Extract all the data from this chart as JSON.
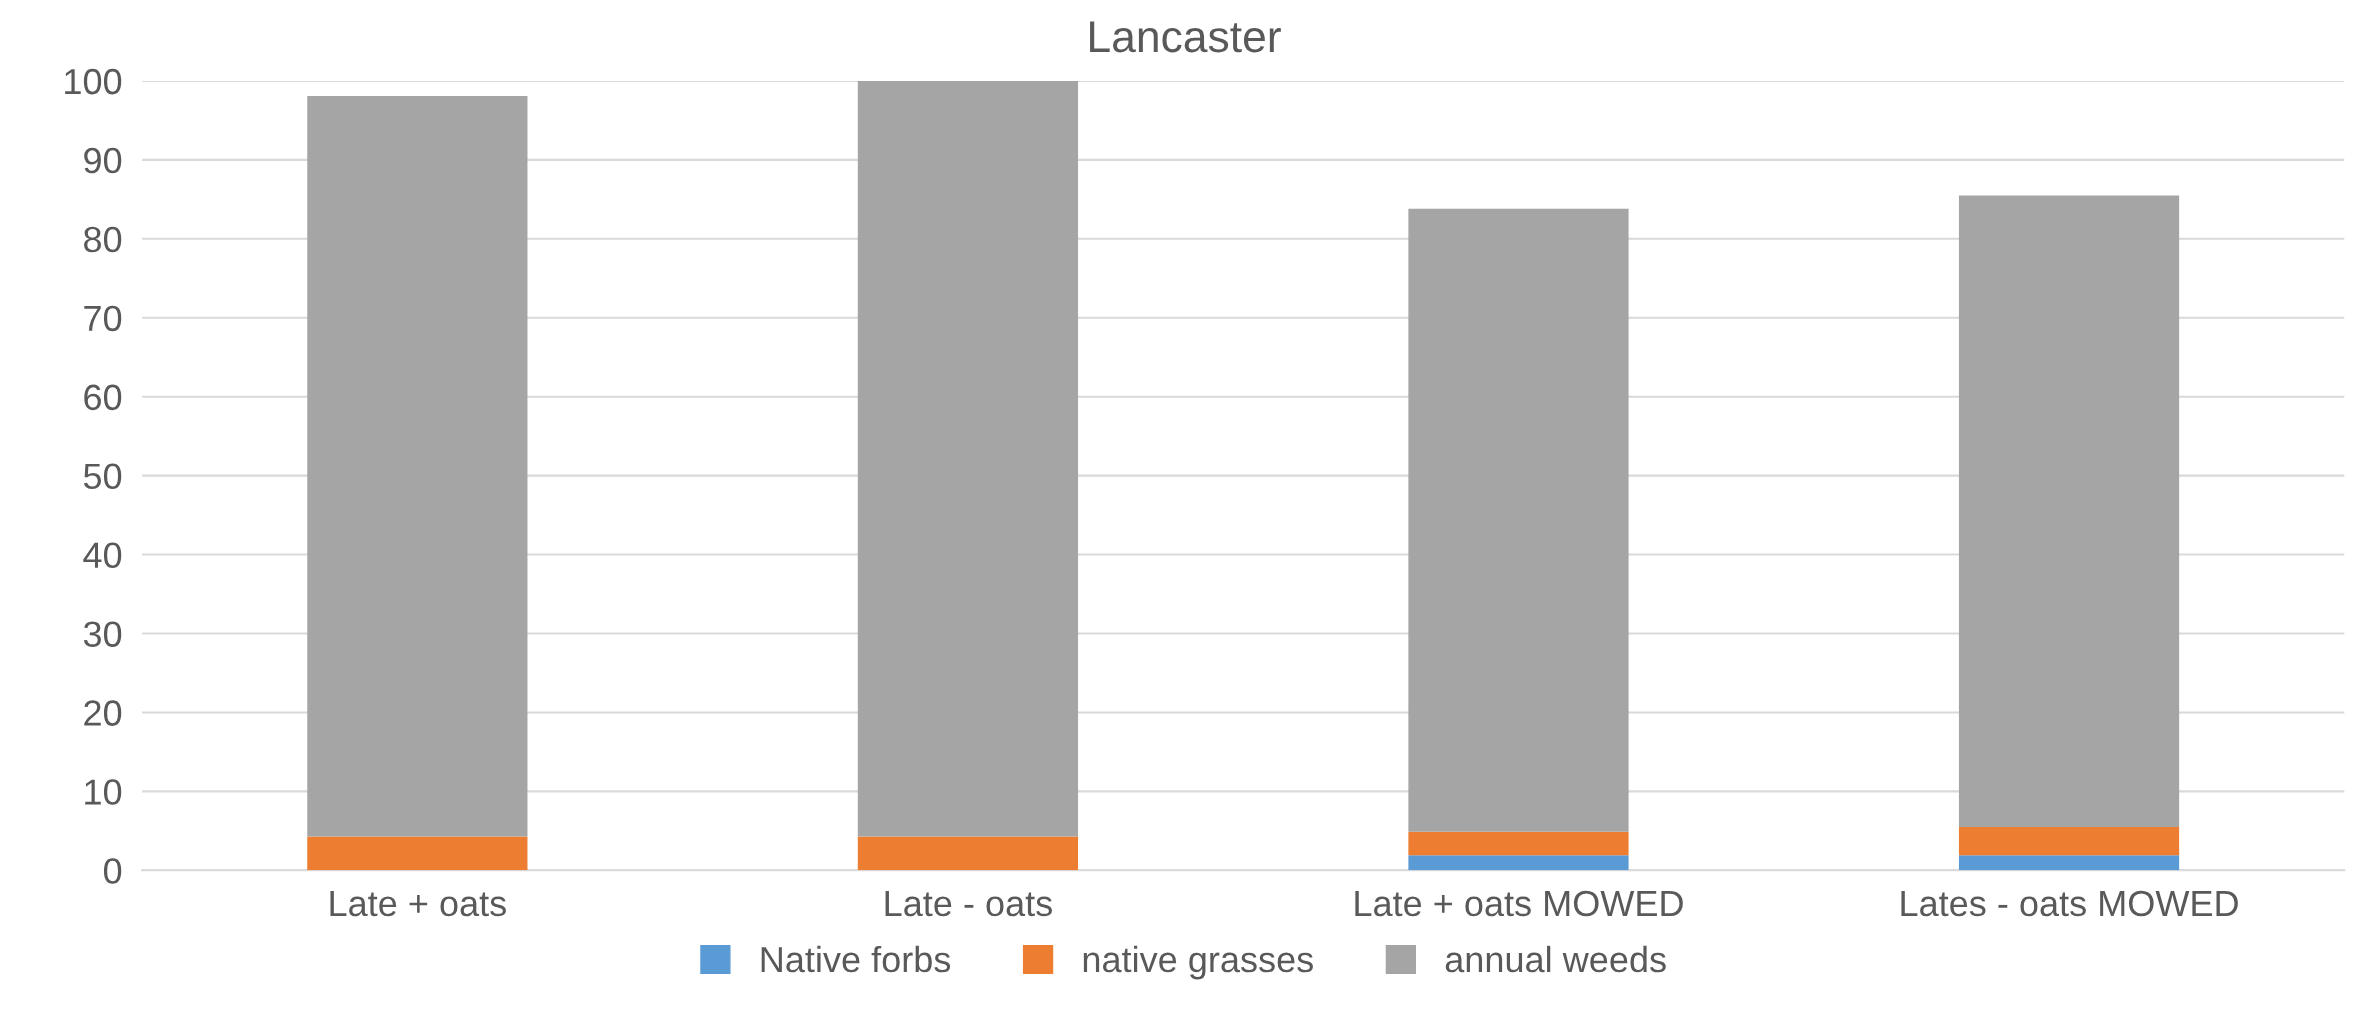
{
  "chart_data": {
    "type": "bar",
    "title": "Lancaster",
    "stacked": true,
    "categories": [
      "Late + oats",
      "Late - oats",
      "Late + oats MOWED",
      "Lates - oats MOWED"
    ],
    "series": [
      {
        "name": "Native forbs",
        "color": "#5b9bd5",
        "values": [
          0,
          0,
          1.9,
          1.9
        ]
      },
      {
        "name": "native grasses",
        "color": "#ed7d31",
        "values": [
          4.3,
          4.3,
          3.0,
          3.6
        ]
      },
      {
        "name": "annual weeds",
        "color": "#a5a5a5",
        "values": [
          93.8,
          95.7,
          78.9,
          80.0
        ]
      }
    ],
    "ylim": [
      0,
      100
    ],
    "yticks": [
      0,
      10,
      20,
      30,
      40,
      50,
      60,
      70,
      80,
      90,
      100
    ],
    "grid": "y",
    "legend": "bottom"
  }
}
